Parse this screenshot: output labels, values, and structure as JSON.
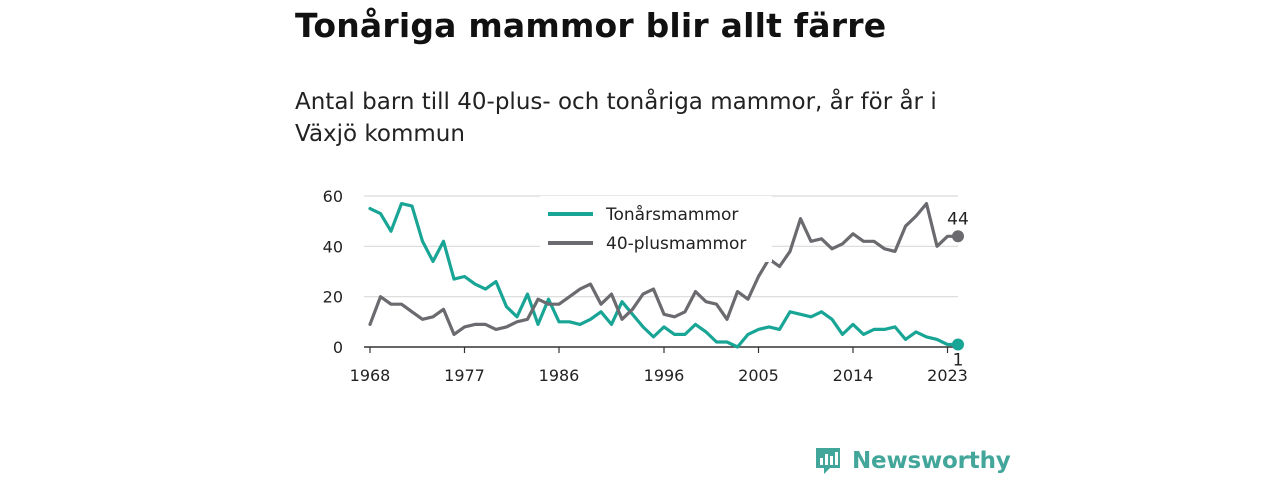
{
  "header": {
    "title": "Tonåriga mammor blir allt färre",
    "subtitle": "Antal barn till 40-plus- och tonåriga mammor, år för år i Växjö kommun"
  },
  "brand": {
    "name": "Newsworthy",
    "logo_icon": "bar-chart-speech-bubble-icon",
    "color": "#43a69a"
  },
  "chart_data": {
    "type": "line",
    "xlim": [
      1968,
      2024
    ],
    "ylim": [
      0,
      60
    ],
    "x_ticks": [
      1968,
      1977,
      1986,
      1996,
      2005,
      2014,
      2023
    ],
    "y_ticks": [
      0,
      20,
      40,
      60
    ],
    "grid": true,
    "legend": "top-center",
    "x": [
      1968,
      1969,
      1970,
      1971,
      1972,
      1973,
      1974,
      1975,
      1976,
      1977,
      1978,
      1979,
      1980,
      1981,
      1982,
      1983,
      1984,
      1985,
      1986,
      1987,
      1988,
      1989,
      1990,
      1991,
      1992,
      1993,
      1994,
      1995,
      1996,
      1997,
      1998,
      1999,
      2000,
      2001,
      2002,
      2003,
      2004,
      2005,
      2006,
      2007,
      2008,
      2009,
      2010,
      2011,
      2012,
      2013,
      2014,
      2015,
      2016,
      2017,
      2018,
      2019,
      2020,
      2021,
      2022,
      2023,
      2024
    ],
    "series": [
      {
        "name": "Tonårsmammor",
        "color": "#19a595",
        "end_label": "1",
        "values": [
          55,
          53,
          46,
          57,
          56,
          42,
          34,
          42,
          27,
          28,
          25,
          23,
          26,
          16,
          12,
          21,
          9,
          19,
          10,
          10,
          9,
          11,
          14,
          9,
          18,
          13,
          8,
          4,
          8,
          5,
          5,
          9,
          6,
          2,
          2,
          0,
          5,
          7,
          8,
          7,
          14,
          13,
          12,
          14,
          11,
          5,
          9,
          5,
          7,
          7,
          8,
          3,
          6,
          4,
          3,
          1,
          1
        ]
      },
      {
        "name": "40-plusmammor",
        "color": "#6b6a6f",
        "end_label": "44",
        "values": [
          9,
          20,
          17,
          17,
          14,
          11,
          12,
          15,
          5,
          8,
          9,
          9,
          7,
          8,
          10,
          11,
          19,
          17,
          17,
          20,
          23,
          25,
          17,
          21,
          11,
          15,
          21,
          23,
          13,
          12,
          14,
          22,
          18,
          17,
          11,
          22,
          19,
          28,
          35,
          32,
          38,
          51,
          42,
          43,
          39,
          41,
          45,
          42,
          42,
          39,
          38,
          48,
          52,
          57,
          40,
          44,
          44
        ]
      }
    ]
  }
}
